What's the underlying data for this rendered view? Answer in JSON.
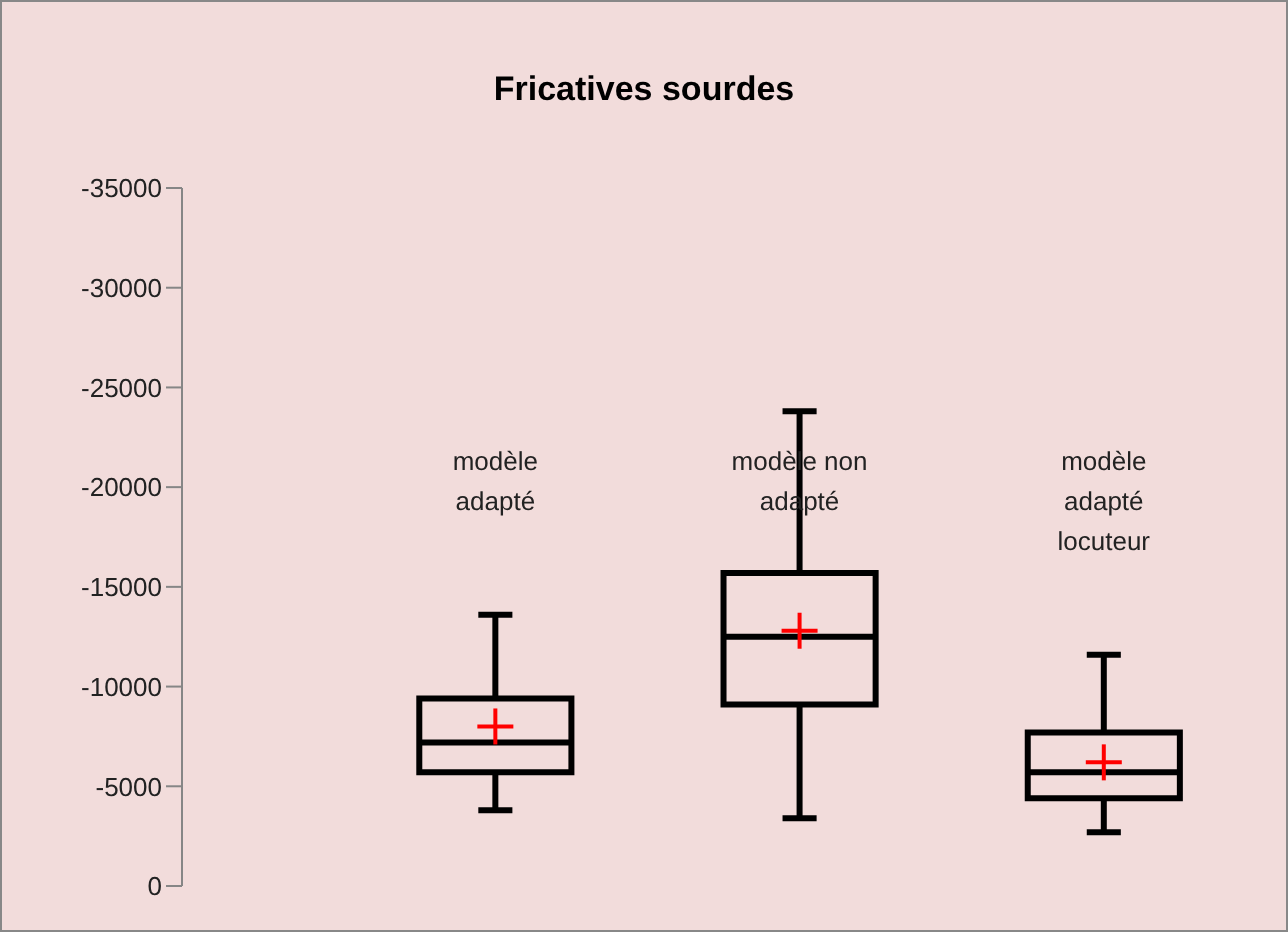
{
  "chart_data": {
    "type": "box",
    "title": "Fricatives sourdes",
    "categories": [
      "modèle adapté",
      "modèle non adapté",
      "modèle adapté locuteur"
    ],
    "color": "#000000",
    "boxes": [
      {
        "low": -3800,
        "q1": -5700,
        "median": -7200,
        "q3": -9400,
        "high": -13600,
        "mean": -8000
      },
      {
        "low": -3400,
        "q1": -9100,
        "median": -12500,
        "q3": -15700,
        "high": -23800,
        "mean": -12800
      },
      {
        "low": -2700,
        "q1": -4400,
        "median": -5700,
        "q3": -7700,
        "high": -11600,
        "mean": -6200
      }
    ],
    "ylim": [
      0,
      -35000
    ],
    "yticks": [
      0,
      -5000,
      -10000,
      -15000,
      -20000,
      -25000,
      -30000,
      -35000
    ]
  }
}
